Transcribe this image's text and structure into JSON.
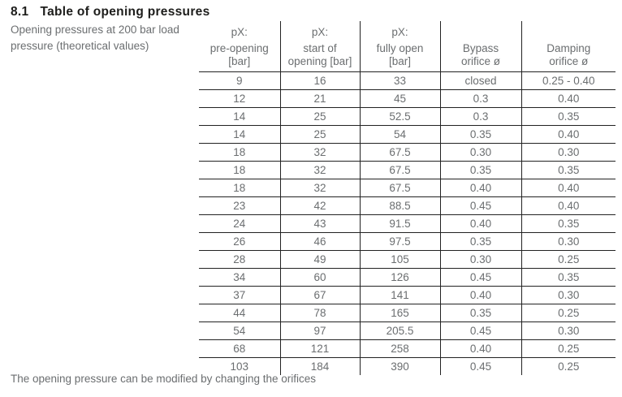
{
  "page": {
    "heading_number": "8.1",
    "heading_title": "Table of opening pressures",
    "description_line1": "Opening pressures at 200 bar load",
    "description_line2": "pressure (theoretical values)",
    "footnote": "The opening pressure can be modified by changing the orifices"
  },
  "table": {
    "columns": [
      {
        "top": "pX:",
        "mid": "pre-opening",
        "bot": "[bar]"
      },
      {
        "top": "pX:",
        "mid": "start of",
        "bot": "opening [bar]"
      },
      {
        "top": "pX:",
        "mid": "fully open",
        "bot": "[bar]"
      },
      {
        "top": "",
        "mid": "Bypass",
        "bot": "orifice ø"
      },
      {
        "top": "",
        "mid": "Damping",
        "bot": "orifice ø"
      }
    ],
    "rows": [
      [
        "9",
        "16",
        "33",
        "closed",
        "0.25 - 0.40"
      ],
      [
        "12",
        "21",
        "45",
        "0.3",
        "0.40"
      ],
      [
        "14",
        "25",
        "52.5",
        "0.3",
        "0.35"
      ],
      [
        "14",
        "25",
        "54",
        "0.35",
        "0.40"
      ],
      [
        "18",
        "32",
        "67.5",
        "0.30",
        "0.30"
      ],
      [
        "18",
        "32",
        "67.5",
        "0.35",
        "0.35"
      ],
      [
        "18",
        "32",
        "67.5",
        "0.40",
        "0.40"
      ],
      [
        "23",
        "42",
        "88.5",
        "0.45",
        "0.40"
      ],
      [
        "24",
        "43",
        "91.5",
        "0.40",
        "0.35"
      ],
      [
        "26",
        "46",
        "97.5",
        "0.35",
        "0.30"
      ],
      [
        "28",
        "49",
        "105",
        "0.30",
        "0.25"
      ],
      [
        "34",
        "60",
        "126",
        "0.45",
        "0.35"
      ],
      [
        "37",
        "67",
        "141",
        "0.40",
        "0.30"
      ],
      [
        "44",
        "78",
        "165",
        "0.35",
        "0.25"
      ],
      [
        "54",
        "97",
        "205.5",
        "0.45",
        "0.30"
      ],
      [
        "68",
        "121",
        "258",
        "0.40",
        "0.25"
      ],
      [
        "103",
        "184",
        "390",
        "0.45",
        "0.25"
      ]
    ]
  },
  "colors": {
    "text_gray": "#6b6e70",
    "heading_black": "#1d1d1b",
    "line_black": "#222222"
  }
}
